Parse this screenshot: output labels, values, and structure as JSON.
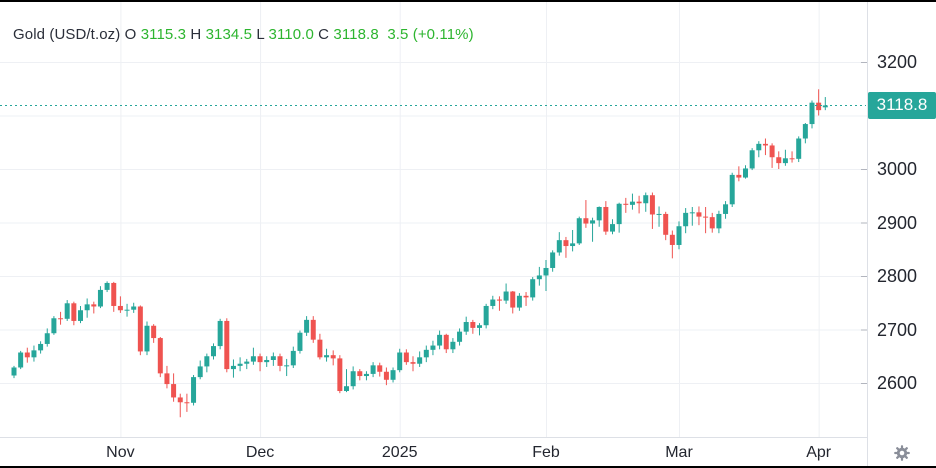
{
  "header": {
    "symbol": "Gold (USD/t.oz)",
    "open_label": "O",
    "open": "3115.3",
    "high_label": "H",
    "high": "3134.5",
    "low_label": "L",
    "low": "3110.0",
    "close_label": "C",
    "close": "3118.8",
    "change": "3.5 (+0.11%)"
  },
  "price_axis": {
    "ticks": [
      3200,
      3000,
      2900,
      2800,
      2700,
      2600
    ],
    "last_price_badge": "3118.8"
  },
  "colors": {
    "up": "#26a69a",
    "down": "#ef5350",
    "header_value_green": "#2db52f",
    "badge_bg": "#26a69a",
    "dotted_line": "#26a69a",
    "grid": "#eef0f4",
    "axis_border": "#dde0e6",
    "tick_mark": "#b2b5be",
    "text_dark": "#23262f",
    "gear": "#8a8e99"
  },
  "chart_data": {
    "type": "candlestick",
    "title": "Gold (USD/t.oz)",
    "legend_ohlc": {
      "open": 3115.3,
      "high": 3134.5,
      "low": 3110.0,
      "close": 3118.8,
      "change": 3.5,
      "change_pct": 0.11
    },
    "last_price": 3118.8,
    "ylim": [
      2499,
      3301
    ],
    "y_gridlines": [
      2600,
      2700,
      2800,
      2900,
      3000,
      3100,
      3200
    ],
    "x_labels": [
      "Nov",
      "Dec",
      "2025",
      "Feb",
      "Mar",
      "Apr"
    ],
    "month_ticks": [
      {
        "label": "Nov",
        "index": 16
      },
      {
        "label": "Dec",
        "index": 37
      },
      {
        "label": "2025",
        "index": 58
      },
      {
        "label": "Feb",
        "index": 80
      },
      {
        "label": "Mar",
        "index": 100
      },
      {
        "label": "Apr",
        "index": 121
      }
    ],
    "legend_position": "top-left",
    "grid": true,
    "candles": [
      [
        2614,
        2632,
        2609,
        2629
      ],
      [
        2629,
        2660,
        2626,
        2657
      ],
      [
        2657,
        2666,
        2638,
        2648
      ],
      [
        2648,
        2670,
        2640,
        2661
      ],
      [
        2661,
        2678,
        2655,
        2673
      ],
      [
        2673,
        2702,
        2668,
        2693
      ],
      [
        2693,
        2725,
        2690,
        2721
      ],
      [
        2721,
        2733,
        2709,
        2720
      ],
      [
        2720,
        2755,
        2716,
        2749
      ],
      [
        2749,
        2752,
        2708,
        2716
      ],
      [
        2716,
        2744,
        2712,
        2736
      ],
      [
        2736,
        2758,
        2722,
        2747
      ],
      [
        2747,
        2752,
        2730,
        2743
      ],
      [
        2743,
        2781,
        2740,
        2774
      ],
      [
        2774,
        2790,
        2770,
        2787
      ],
      [
        2787,
        2789,
        2733,
        2744
      ],
      [
        2744,
        2762,
        2731,
        2736
      ],
      [
        2736,
        2748,
        2724,
        2737
      ],
      [
        2737,
        2750,
        2731,
        2743
      ],
      [
        2743,
        2745,
        2652,
        2659
      ],
      [
        2659,
        2715,
        2652,
        2707
      ],
      [
        2707,
        2710,
        2675,
        2684
      ],
      [
        2684,
        2686,
        2611,
        2618
      ],
      [
        2618,
        2632,
        2590,
        2598
      ],
      [
        2598,
        2618,
        2565,
        2573
      ],
      [
        2573,
        2580,
        2536,
        2564
      ],
      [
        2564,
        2580,
        2546,
        2563
      ],
      [
        2563,
        2615,
        2558,
        2611
      ],
      [
        2611,
        2642,
        2607,
        2631
      ],
      [
        2631,
        2655,
        2620,
        2650
      ],
      [
        2650,
        2674,
        2644,
        2669
      ],
      [
        2669,
        2720,
        2663,
        2716
      ],
      [
        2716,
        2721,
        2620,
        2626
      ],
      [
        2626,
        2644,
        2610,
        2632
      ],
      [
        2632,
        2648,
        2622,
        2636
      ],
      [
        2636,
        2645,
        2626,
        2640
      ],
      [
        2640,
        2666,
        2634,
        2650
      ],
      [
        2650,
        2655,
        2622,
        2639
      ],
      [
        2639,
        2650,
        2630,
        2643
      ],
      [
        2643,
        2657,
        2632,
        2650
      ],
      [
        2650,
        2655,
        2622,
        2632
      ],
      [
        2632,
        2645,
        2613,
        2633
      ],
      [
        2633,
        2668,
        2628,
        2660
      ],
      [
        2660,
        2698,
        2655,
        2694
      ],
      [
        2694,
        2725,
        2688,
        2718
      ],
      [
        2718,
        2725,
        2675,
        2681
      ],
      [
        2681,
        2692,
        2644,
        2648
      ],
      [
        2648,
        2664,
        2640,
        2652
      ],
      [
        2652,
        2661,
        2633,
        2646
      ],
      [
        2646,
        2652,
        2581,
        2585
      ],
      [
        2585,
        2626,
        2583,
        2594
      ],
      [
        2594,
        2631,
        2588,
        2622
      ],
      [
        2622,
        2626,
        2605,
        2613
      ],
      [
        2613,
        2622,
        2605,
        2617
      ],
      [
        2617,
        2639,
        2611,
        2633
      ],
      [
        2633,
        2638,
        2612,
        2621
      ],
      [
        2621,
        2629,
        2596,
        2606
      ],
      [
        2606,
        2629,
        2601,
        2624
      ],
      [
        2624,
        2664,
        2620,
        2657
      ],
      [
        2657,
        2663,
        2634,
        2639
      ],
      [
        2639,
        2650,
        2622,
        2636
      ],
      [
        2636,
        2659,
        2630,
        2648
      ],
      [
        2648,
        2670,
        2639,
        2662
      ],
      [
        2662,
        2679,
        2652,
        2670
      ],
      [
        2670,
        2698,
        2663,
        2690
      ],
      [
        2690,
        2692,
        2656,
        2663
      ],
      [
        2663,
        2684,
        2656,
        2677
      ],
      [
        2677,
        2702,
        2670,
        2696
      ],
      [
        2696,
        2724,
        2690,
        2714
      ],
      [
        2714,
        2718,
        2692,
        2703
      ],
      [
        2703,
        2712,
        2689,
        2708
      ],
      [
        2708,
        2748,
        2702,
        2744
      ],
      [
        2744,
        2763,
        2738,
        2756
      ],
      [
        2756,
        2762,
        2735,
        2754
      ],
      [
        2754,
        2786,
        2748,
        2771
      ],
      [
        2771,
        2772,
        2730,
        2741
      ],
      [
        2741,
        2768,
        2735,
        2763
      ],
      [
        2763,
        2770,
        2744,
        2760
      ],
      [
        2760,
        2798,
        2754,
        2794
      ],
      [
        2794,
        2817,
        2782,
        2801
      ],
      [
        2801,
        2830,
        2772,
        2815
      ],
      [
        2815,
        2848,
        2808,
        2844
      ],
      [
        2844,
        2882,
        2838,
        2867
      ],
      [
        2867,
        2873,
        2834,
        2856
      ],
      [
        2856,
        2886,
        2846,
        2861
      ],
      [
        2861,
        2911,
        2858,
        2908
      ],
      [
        2908,
        2942,
        2890,
        2898
      ],
      [
        2898,
        2909,
        2864,
        2904
      ],
      [
        2904,
        2930,
        2892,
        2929
      ],
      [
        2929,
        2940,
        2877,
        2883
      ],
      [
        2883,
        2906,
        2878,
        2897
      ],
      [
        2897,
        2937,
        2881,
        2935
      ],
      [
        2935,
        2946,
        2918,
        2933
      ],
      [
        2933,
        2954,
        2924,
        2939
      ],
      [
        2939,
        2950,
        2917,
        2936
      ],
      [
        2936,
        2956,
        2920,
        2951
      ],
      [
        2951,
        2956,
        2888,
        2915
      ],
      [
        2915,
        2930,
        2892,
        2916
      ],
      [
        2916,
        2920,
        2867,
        2877
      ],
      [
        2877,
        2885,
        2833,
        2858
      ],
      [
        2858,
        2902,
        2850,
        2893
      ],
      [
        2893,
        2927,
        2880,
        2918
      ],
      [
        2918,
        2929,
        2894,
        2919
      ],
      [
        2919,
        2930,
        2895,
        2911
      ],
      [
        2911,
        2929,
        2880,
        2910
      ],
      [
        2910,
        2918,
        2881,
        2889
      ],
      [
        2889,
        2922,
        2880,
        2916
      ],
      [
        2916,
        2940,
        2907,
        2934
      ],
      [
        2934,
        2993,
        2929,
        2989
      ],
      [
        2989,
        3005,
        2977,
        2984
      ],
      [
        2984,
        3007,
        2982,
        3001
      ],
      [
        3001,
        3039,
        2998,
        3035
      ],
      [
        3035,
        3052,
        3022,
        3047
      ],
      [
        3047,
        3057,
        3026,
        3044
      ],
      [
        3044,
        3048,
        3002,
        3022
      ],
      [
        3022,
        3033,
        3000,
        3011
      ],
      [
        3011,
        3036,
        3006,
        3020
      ],
      [
        3020,
        3033,
        3012,
        3019
      ],
      [
        3019,
        3061,
        3013,
        3057
      ],
      [
        3057,
        3086,
        3048,
        3084
      ],
      [
        3084,
        3128,
        3076,
        3124
      ],
      [
        3124,
        3149,
        3100,
        3110
      ],
      [
        3115.3,
        3134.5,
        3110.0,
        3118.8
      ]
    ]
  }
}
